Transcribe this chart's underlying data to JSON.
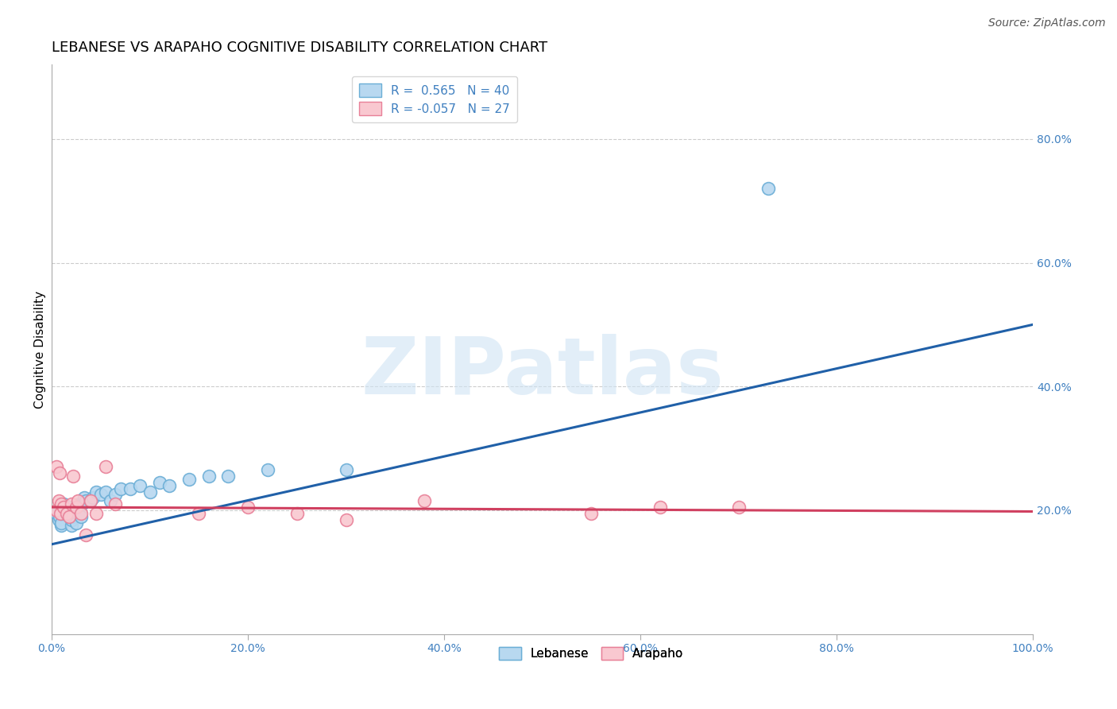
{
  "title": "LEBANESE VS ARAPAHO COGNITIVE DISABILITY CORRELATION CHART",
  "source_text": "Source: ZipAtlas.com",
  "ylabel": "Cognitive Disability",
  "watermark": "ZIPatlas",
  "blue_label": "R =  0.565   N = 40",
  "pink_label": "R = -0.057   N = 27",
  "bottom_labels": [
    "Lebanese",
    "Arapaho"
  ],
  "xlim": [
    0.0,
    1.0
  ],
  "ylim": [
    0.0,
    0.92
  ],
  "ytick_vals": [
    0.2,
    0.4,
    0.6,
    0.8
  ],
  "ytick_labels": [
    "20.0%",
    "40.0%",
    "60.0%",
    "80.0%"
  ],
  "xtick_vals": [
    0.0,
    0.2,
    0.4,
    0.6,
    0.8,
    1.0
  ],
  "xtick_labels": [
    "0.0%",
    "20.0%",
    "40.0%",
    "60.0%",
    "80.0%",
    "100.0%"
  ],
  "blue_scatter_x": [
    0.005,
    0.007,
    0.008,
    0.009,
    0.01,
    0.01,
    0.01,
    0.012,
    0.015,
    0.017,
    0.019,
    0.02,
    0.02,
    0.022,
    0.025,
    0.027,
    0.028,
    0.03,
    0.031,
    0.033,
    0.035,
    0.04,
    0.042,
    0.045,
    0.05,
    0.055,
    0.06,
    0.065,
    0.07,
    0.08,
    0.09,
    0.1,
    0.11,
    0.12,
    0.14,
    0.16,
    0.18,
    0.22,
    0.73,
    0.3
  ],
  "blue_scatter_y": [
    0.195,
    0.185,
    0.19,
    0.2,
    0.175,
    0.18,
    0.195,
    0.21,
    0.2,
    0.205,
    0.19,
    0.175,
    0.185,
    0.19,
    0.18,
    0.195,
    0.21,
    0.19,
    0.21,
    0.22,
    0.215,
    0.215,
    0.22,
    0.23,
    0.225,
    0.23,
    0.215,
    0.225,
    0.235,
    0.235,
    0.24,
    0.23,
    0.245,
    0.24,
    0.25,
    0.255,
    0.255,
    0.265,
    0.72,
    0.265
  ],
  "pink_scatter_x": [
    0.005,
    0.007,
    0.009,
    0.01,
    0.012,
    0.015,
    0.018,
    0.02,
    0.025,
    0.027,
    0.03,
    0.04,
    0.045,
    0.055,
    0.065,
    0.15,
    0.2,
    0.25,
    0.3,
    0.38,
    0.55,
    0.62,
    0.7,
    0.005,
    0.008,
    0.022,
    0.035
  ],
  "pink_scatter_y": [
    0.2,
    0.215,
    0.195,
    0.21,
    0.205,
    0.195,
    0.19,
    0.21,
    0.205,
    0.215,
    0.195,
    0.215,
    0.195,
    0.27,
    0.21,
    0.195,
    0.205,
    0.195,
    0.185,
    0.215,
    0.195,
    0.205,
    0.205,
    0.27,
    0.26,
    0.255,
    0.16
  ],
  "blue_line": [
    [
      0.0,
      1.0
    ],
    [
      0.145,
      0.5
    ]
  ],
  "pink_line": [
    [
      0.0,
      1.0
    ],
    [
      0.205,
      0.198
    ]
  ],
  "grid_color": "#cccccc",
  "grid_linestyle": "--",
  "blue_dot_face": "#b8d8f0",
  "blue_dot_edge": "#6baed6",
  "pink_dot_face": "#f9c8d0",
  "pink_dot_edge": "#e88098",
  "blue_line_color": "#2060a8",
  "pink_line_color": "#d04060",
  "tick_color": "#4080c0",
  "title_fontsize": 13,
  "tick_fontsize": 10,
  "ylabel_fontsize": 11,
  "legend_fontsize": 11,
  "source_fontsize": 10
}
